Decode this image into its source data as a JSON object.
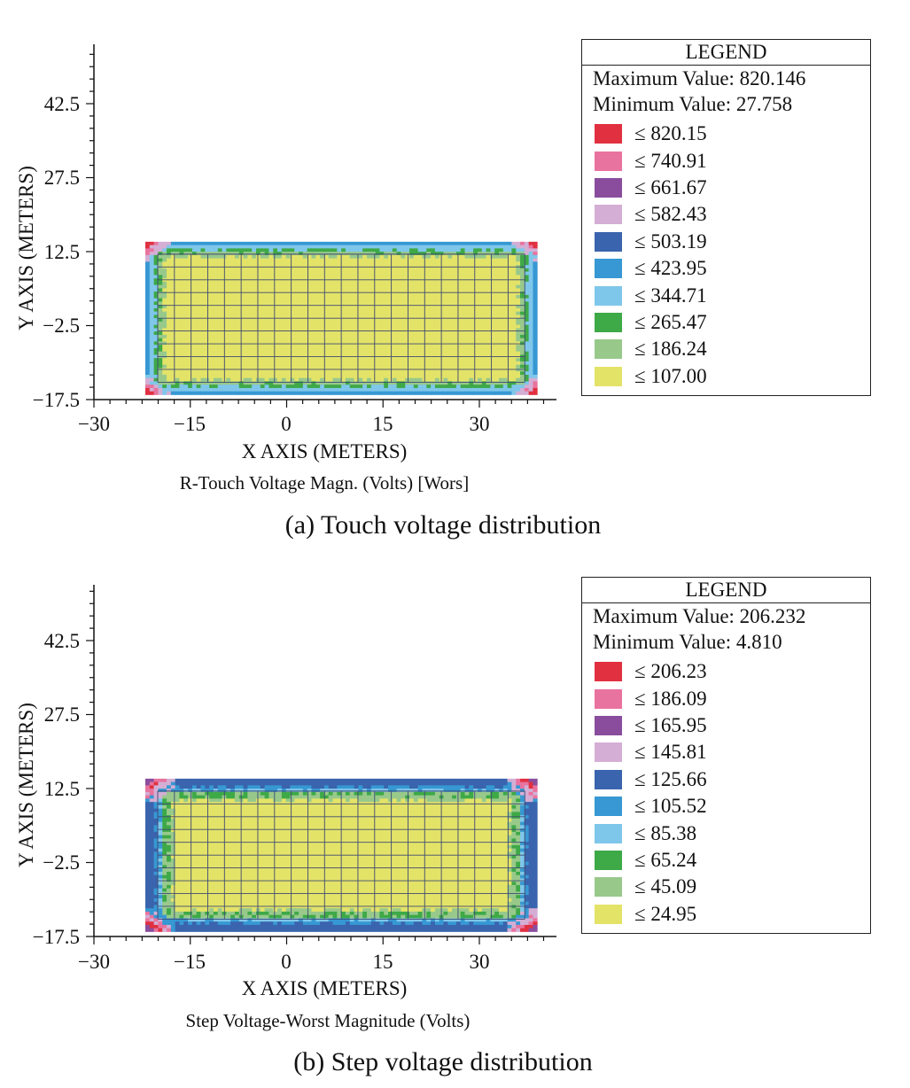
{
  "colors": {
    "c10": "#e13040",
    "c9": "#e8739e",
    "c8": "#8a4d9e",
    "c7": "#d4aed4",
    "c6": "#3a64ad",
    "c5": "#3798d3",
    "c4": "#7fc7ea",
    "c3": "#3ea947",
    "c2": "#98c98b",
    "c1": "#e3e368",
    "grid": "#3f4a72"
  },
  "panels": [
    {
      "caption": "(a) Touch voltage distribution",
      "chart_data": {
        "type": "heatmap",
        "title": "R-Touch Voltage Magn. (Volts) [Wors]",
        "xlabel": "X AXIS (METERS)",
        "ylabel": "Y AXIS (METERS)",
        "xlim": [
          -30,
          42
        ],
        "ylim": [
          -17.5,
          54.5
        ],
        "xticks": [
          "−30",
          "−15",
          "0",
          "15",
          "30"
        ],
        "yticks": [
          "−17.5",
          "−2.5",
          "12.5",
          "27.5",
          "42.5"
        ],
        "grid_region": {
          "x": [
            -22,
            39
          ],
          "y": [
            -16.5,
            14.5
          ]
        },
        "legend": {
          "title": "LEGEND",
          "max_label": "Maximum Value: 820.146",
          "min_label": "Minimum Value: 27.758",
          "items": [
            {
              "label": "≤ 820.15",
              "color": "#e13040"
            },
            {
              "label": "≤ 740.91",
              "color": "#e8739e"
            },
            {
              "label": "≤ 661.67",
              "color": "#8a4d9e"
            },
            {
              "label": "≤ 582.43",
              "color": "#d4aed4"
            },
            {
              "label": "≤ 503.19",
              "color": "#3a64ad"
            },
            {
              "label": "≤ 423.95",
              "color": "#3798d3"
            },
            {
              "label": "≤ 344.71",
              "color": "#7fc7ea"
            },
            {
              "label": "≤ 265.47",
              "color": "#3ea947"
            },
            {
              "label": "≤ 186.24",
              "color": "#98c98b"
            },
            {
              "label": "≤ 107.00",
              "color": "#e3e368"
            }
          ]
        }
      }
    },
    {
      "caption": "(b) Step voltage distribution",
      "chart_data": {
        "type": "heatmap",
        "title": "Step Voltage-Worst Magnitude (Volts)",
        "xlabel": "X AXIS (METERS)",
        "ylabel": "Y AXIS (METERS)",
        "xlim": [
          -30,
          42
        ],
        "ylim": [
          -17.5,
          54.5
        ],
        "xticks": [
          "−30",
          "−15",
          "0",
          "15",
          "30"
        ],
        "yticks": [
          "−17.5",
          "−2.5",
          "12.5",
          "27.5",
          "42.5"
        ],
        "grid_region": {
          "x": [
            -22,
            39
          ],
          "y": [
            -16.5,
            14.5
          ]
        },
        "legend": {
          "title": "LEGEND",
          "max_label": "Maximum Value: 206.232",
          "min_label": "Minimum Value: 4.810",
          "items": [
            {
              "label": "≤ 206.23",
              "color": "#e13040"
            },
            {
              "label": "≤ 186.09",
              "color": "#e8739e"
            },
            {
              "label": "≤ 165.95",
              "color": "#8a4d9e"
            },
            {
              "label": "≤ 145.81",
              "color": "#d4aed4"
            },
            {
              "label": "≤ 125.66",
              "color": "#3a64ad"
            },
            {
              "label": "≤ 105.52",
              "color": "#3798d3"
            },
            {
              "label": "≤ 85.38",
              "color": "#7fc7ea"
            },
            {
              "label": "≤ 65.24",
              "color": "#3ea947"
            },
            {
              "label": "≤ 45.09",
              "color": "#98c98b"
            },
            {
              "label": "≤ 24.95",
              "color": "#e3e368"
            }
          ]
        }
      }
    }
  ]
}
